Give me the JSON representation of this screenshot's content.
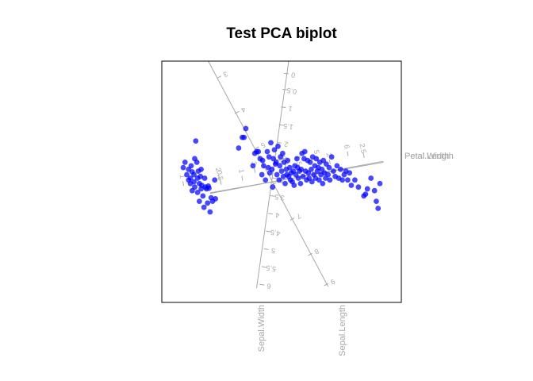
{
  "chart_data": {
    "type": "scatter",
    "title": "Test PCA biplot",
    "point_color": "#0000ff",
    "axis_color": "#a8a8a8",
    "points": [
      [
        -2.5,
        0.4
      ],
      [
        -2.45,
        0.55
      ],
      [
        -2.4,
        0.2
      ],
      [
        -2.35,
        0.35
      ],
      [
        -2.35,
        0.05
      ],
      [
        -2.3,
        0.1
      ],
      [
        -2.3,
        -0.05
      ],
      [
        -2.28,
        0.45
      ],
      [
        -2.25,
        0.28
      ],
      [
        -2.25,
        -0.25
      ],
      [
        -2.2,
        0.2
      ],
      [
        -2.2,
        0.0
      ],
      [
        -2.18,
        -0.15
      ],
      [
        -2.18,
        0.65
      ],
      [
        -2.15,
        1.15
      ],
      [
        -2.12,
        0.55
      ],
      [
        -2.1,
        0.1
      ],
      [
        -2.1,
        -0.3
      ],
      [
        -2.08,
        0.3
      ],
      [
        -2.05,
        -0.55
      ],
      [
        -2.05,
        -0.05
      ],
      [
        -2.02,
        0.15
      ],
      [
        -2.0,
        -0.2
      ],
      [
        -2.0,
        0.35
      ],
      [
        -1.98,
        -0.1
      ],
      [
        -1.95,
        -0.4
      ],
      [
        -1.92,
        -0.72
      ],
      [
        -1.9,
        0.1
      ],
      [
        -1.88,
        -0.15
      ],
      [
        -1.85,
        -0.2
      ],
      [
        -1.82,
        -0.6
      ],
      [
        -1.8,
        -0.12
      ],
      [
        -1.78,
        -0.18
      ],
      [
        -1.75,
        -0.85
      ],
      [
        -1.72,
        -0.45
      ],
      [
        -1.68,
        -0.55
      ],
      [
        -1.62,
        0.05
      ],
      [
        -1.6,
        -0.48
      ],
      [
        -0.95,
        0.95
      ],
      [
        -0.85,
        1.25
      ],
      [
        -0.8,
        1.25
      ],
      [
        -0.75,
        1.5
      ],
      [
        -0.55,
        0.45
      ],
      [
        -0.5,
        0.8
      ],
      [
        -0.45,
        0.85
      ],
      [
        -0.4,
        0.85
      ],
      [
        -0.35,
        0.65
      ],
      [
        -0.3,
        0.2
      ],
      [
        -0.28,
        0.6
      ],
      [
        -0.25,
        0.45
      ],
      [
        -0.2,
        0.05
      ],
      [
        -0.15,
        0.85
      ],
      [
        -0.12,
        0.4
      ],
      [
        -0.1,
        0.7
      ],
      [
        -0.08,
        0.25
      ],
      [
        -0.05,
        1.1
      ],
      [
        -0.02,
        0.35
      ],
      [
        0.0,
        -0.15
      ],
      [
        0.02,
        0.65
      ],
      [
        0.05,
        0.9
      ],
      [
        0.08,
        0.5
      ],
      [
        0.1,
        0.55
      ],
      [
        0.12,
        0.2
      ],
      [
        0.15,
        1.0
      ],
      [
        0.18,
        0.05
      ],
      [
        0.2,
        0.45
      ],
      [
        0.22,
        0.7
      ],
      [
        0.25,
        0.3
      ],
      [
        0.28,
        0.8
      ],
      [
        0.3,
        0.15
      ],
      [
        0.32,
        0.55
      ],
      [
        0.35,
        -0.05
      ],
      [
        0.38,
        0.35
      ],
      [
        0.4,
        0.2
      ],
      [
        0.42,
        0.6
      ],
      [
        0.45,
        0.15
      ],
      [
        0.48,
        0.4
      ],
      [
        0.5,
        0.05
      ],
      [
        0.52,
        0.25
      ],
      [
        0.55,
        0.0
      ],
      [
        0.58,
        0.3
      ],
      [
        0.6,
        -0.1
      ],
      [
        0.62,
        0.45
      ],
      [
        0.65,
        0.2
      ],
      [
        0.68,
        0.65
      ],
      [
        0.7,
        0.4
      ],
      [
        0.72,
        0.1
      ],
      [
        0.75,
        0.3
      ],
      [
        0.78,
        -0.05
      ],
      [
        0.8,
        0.35
      ],
      [
        0.82,
        0.8
      ],
      [
        0.85,
        0.15
      ],
      [
        0.88,
        0.65
      ],
      [
        0.9,
        0.85
      ],
      [
        0.92,
        0.3
      ],
      [
        0.95,
        0.05
      ],
      [
        0.98,
        0.6
      ],
      [
        1.0,
        0.25
      ],
      [
        1.02,
        0.1
      ],
      [
        1.05,
        0.55
      ],
      [
        1.08,
        0.35
      ],
      [
        1.1,
        0.0
      ],
      [
        1.12,
        0.7
      ],
      [
        1.15,
        0.2
      ],
      [
        1.18,
        0.45
      ],
      [
        1.2,
        0.1
      ],
      [
        1.22,
        0.65
      ],
      [
        1.25,
        0.3
      ],
      [
        1.28,
        0.4
      ],
      [
        1.3,
        0.05
      ],
      [
        1.32,
        0.55
      ],
      [
        1.35,
        0.2
      ],
      [
        1.38,
        0.35
      ],
      [
        1.4,
        -0.05
      ],
      [
        1.42,
        0.6
      ],
      [
        1.45,
        0.25
      ],
      [
        1.48,
        0.1
      ],
      [
        1.5,
        0.5
      ],
      [
        1.55,
        0.2
      ],
      [
        1.58,
        0.4
      ],
      [
        1.6,
        0.05
      ],
      [
        1.65,
        0.7
      ],
      [
        1.7,
        0.3
      ],
      [
        1.75,
        0.15
      ],
      [
        1.8,
        0.45
      ],
      [
        1.85,
        0.1
      ],
      [
        1.9,
        0.35
      ],
      [
        1.95,
        0.05
      ],
      [
        2.0,
        0.2
      ],
      [
        2.05,
        0.3
      ],
      [
        2.1,
        0.05
      ],
      [
        2.15,
        0.25
      ],
      [
        2.2,
        -0.1
      ],
      [
        2.3,
        0.05
      ],
      [
        2.4,
        -0.15
      ],
      [
        2.55,
        -0.4
      ],
      [
        2.65,
        -0.2
      ],
      [
        2.75,
        0.1
      ],
      [
        2.85,
        -0.25
      ],
      [
        3.0,
        -0.05
      ],
      [
        2.95,
        -0.75
      ],
      [
        2.9,
        -0.55
      ],
      [
        2.6,
        -0.35
      ]
    ],
    "variables": [
      {
        "name": "Petal.Length",
        "label": "Petal.Length",
        "direction": [
          3.1,
          0.55
        ],
        "back": [
          -1.75,
          -0.31
        ],
        "ticks": [
          {
            "label": "1",
            "pos": [
              -2.5,
              -0.05
            ]
          },
          {
            "label": "2",
            "pos": [
              -1.5,
              0.14
            ]
          },
          {
            "label": "3",
            "pos": [
              -0.5,
              0.32
            ]
          },
          {
            "label": "4",
            "pos": [
              0.35,
              0.48
            ]
          },
          {
            "label": "5",
            "pos": [
              1.25,
              0.64
            ]
          },
          {
            "label": "6",
            "pos": [
              2.1,
              0.79
            ]
          }
        ]
      },
      {
        "name": "Petal.Width",
        "label": "Petal.Width",
        "direction": [
          3.1,
          0.58
        ],
        "back": [
          -1.75,
          -0.33
        ],
        "ticks": [
          {
            "label": "0.5",
            "pos": [
              -1.45,
              -0.02
            ]
          },
          {
            "label": "1",
            "pos": [
              -0.85,
              0.1
            ]
          },
          {
            "label": "1.5",
            "pos": [
              0.75,
              0.4
            ]
          },
          {
            "label": "2",
            "pos": [
              1.6,
              0.56
            ]
          },
          {
            "label": "2.5",
            "pos": [
              2.55,
              0.74
            ]
          }
        ]
      },
      {
        "name": "Sepal.Length",
        "label": "Sepal.Length",
        "direction": [
          1.55,
          -2.95
        ],
        "back": [
          -1.8,
          3.4
        ],
        "ticks": [
          {
            "label": "3",
            "pos": [
              -1.5,
              2.95
            ]
          },
          {
            "label": "4",
            "pos": [
              -1.0,
              1.95
            ]
          },
          {
            "label": "5",
            "pos": [
              -0.45,
              0.95
            ]
          },
          {
            "label": "6",
            "pos": [
              0.05,
              -0.05
            ]
          },
          {
            "label": "7",
            "pos": [
              0.55,
              -1.05
            ]
          },
          {
            "label": "8",
            "pos": [
              1.05,
              -2.05
            ]
          },
          {
            "label": "9",
            "pos": [
              1.5,
              -2.9
            ]
          }
        ]
      },
      {
        "name": "Sepal.Width",
        "label": "Sepal.Width",
        "direction": [
          -0.45,
          -3.0
        ],
        "back": [
          0.45,
          3.4
        ],
        "ticks": [
          {
            "label": "0",
            "pos": [
              0.38,
              3.05
            ]
          },
          {
            "label": "0.5",
            "pos": [
              0.34,
              2.6
            ]
          },
          {
            "label": "1",
            "pos": [
              0.3,
              2.1
            ]
          },
          {
            "label": "1.5",
            "pos": [
              0.24,
              1.6
            ]
          },
          {
            "label": "2",
            "pos": [
              0.18,
              1.1
            ]
          },
          {
            "label": "2.5",
            "pos": [
              0.12,
              0.62
            ]
          },
          {
            "label": "3",
            "pos": [
              0.06,
              0.1
            ]
          },
          {
            "label": "3.5",
            "pos": [
              0.0,
              -0.4
            ]
          },
          {
            "label": "4",
            "pos": [
              -0.06,
              -0.9
            ]
          },
          {
            "label": "4.5",
            "pos": [
              -0.12,
              -1.4
            ]
          },
          {
            "label": "5",
            "pos": [
              -0.18,
              -1.9
            ]
          },
          {
            "label": "5.5",
            "pos": [
              -0.24,
              -2.4
            ]
          },
          {
            "label": "6",
            "pos": [
              -0.3,
              -2.9
            ]
          }
        ]
      }
    ],
    "xlim": [
      -3.1,
      3.6
    ],
    "ylim": [
      -3.4,
      3.4
    ],
    "grid": false,
    "legend": "none"
  }
}
